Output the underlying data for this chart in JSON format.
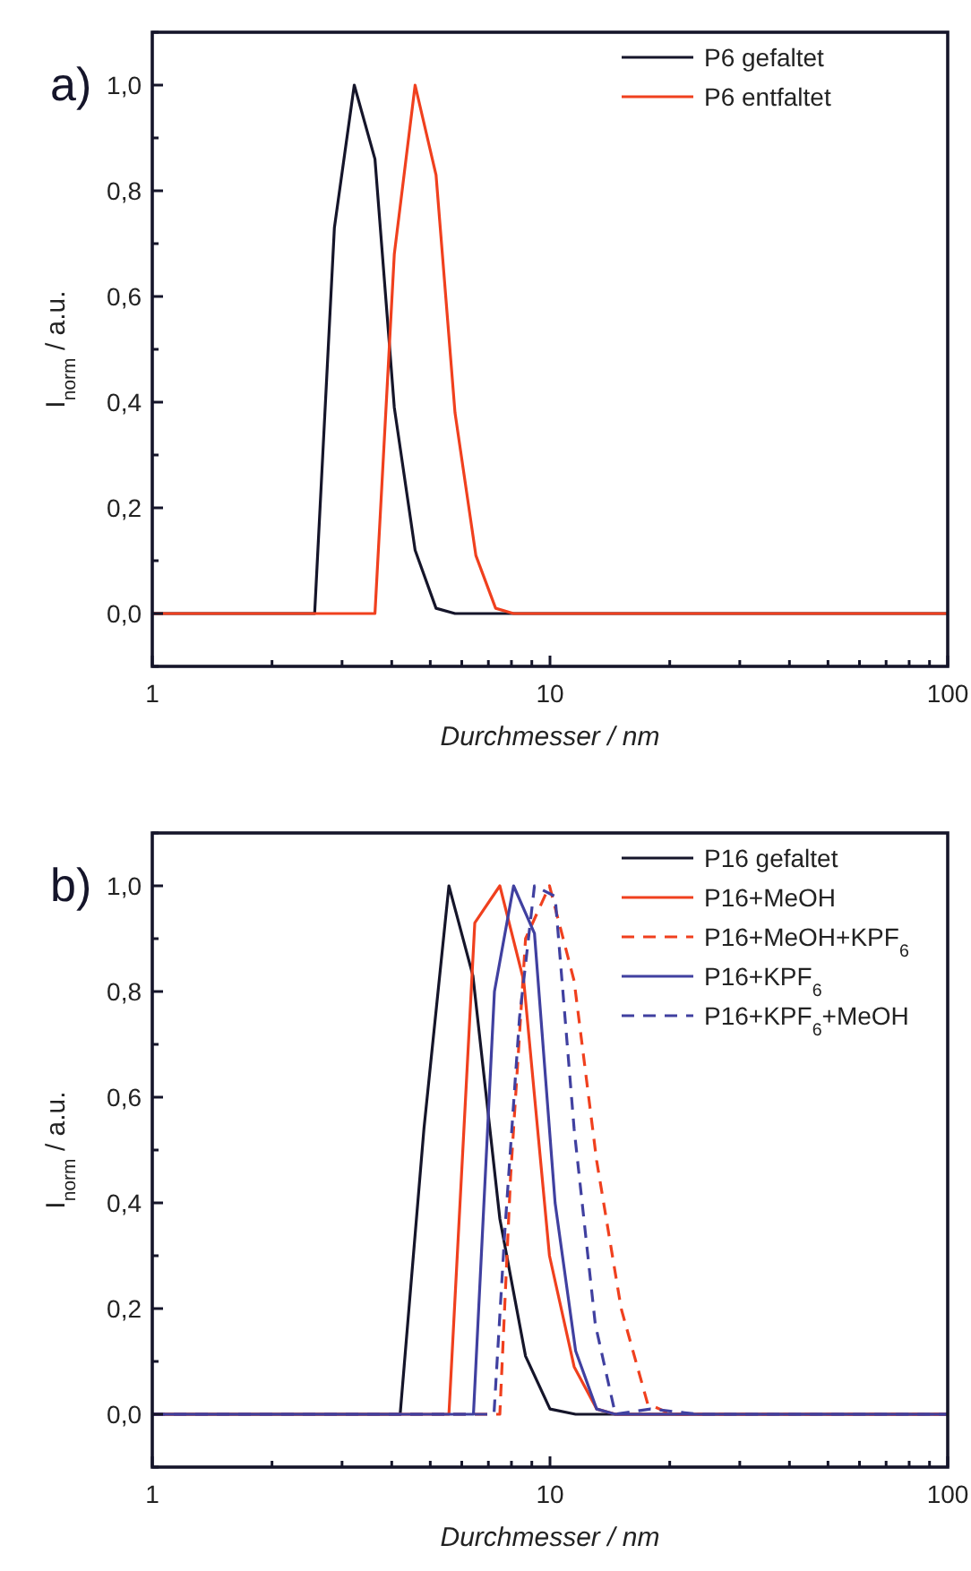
{
  "chart_data": [
    {
      "type": "line",
      "title": "a)",
      "xlabel": "Durchmesser / nm",
      "ylabel": "I$_{norm}$ / a.u.",
      "log": "x",
      "xlim": [
        1,
        100
      ],
      "ylim": [
        -0.1,
        1.1
      ],
      "xticks": [
        1,
        {
          "value": 2,
          "label": null
        },
        {
          "value": 3,
          "label": null
        },
        {
          "value": 4,
          "label": null
        },
        {
          "value": 5,
          "label": null
        },
        {
          "value": 6,
          "label": null
        },
        {
          "value": 7,
          "label": null
        },
        {
          "value": 8,
          "label": null
        },
        {
          "value": 9,
          "label": null
        },
        10,
        {
          "value": 20,
          "label": null
        },
        {
          "value": 30,
          "label": null
        },
        {
          "value": 40,
          "label": null
        },
        {
          "value": 50,
          "label": null
        },
        {
          "value": 60,
          "label": null
        },
        {
          "value": 70,
          "label": null
        },
        {
          "value": 80,
          "label": null
        },
        {
          "value": 90,
          "label": null
        },
        100
      ],
      "yticks": [
        {
          "value": -0.1,
          "label": null
        },
        {
          "value": 0,
          "label": "0,0"
        },
        {
          "value": 0.1,
          "label": null
        },
        {
          "value": 0.2,
          "label": "0,2"
        },
        {
          "value": 0.3,
          "label": null
        },
        {
          "value": 0.4,
          "label": "0,4"
        },
        {
          "value": 0.5,
          "label": null
        },
        {
          "value": 0.6,
          "label": "0,6"
        },
        {
          "value": 0.7,
          "label": null
        },
        {
          "value": 0.8,
          "label": "0,8"
        },
        {
          "value": 0.9,
          "label": null
        },
        {
          "value": 1,
          "label": "1,0"
        },
        {
          "value": 1.1,
          "label": null
        }
      ],
      "grid": false,
      "legend": "top right",
      "series": [
        {
          "name": "P6 gefaltet",
          "color": "#15152a",
          "x": [
            1,
            2.56,
            2.87,
            3.22,
            3.63,
            4.06,
            4.58,
            5.17,
            5.77,
            8.1,
            100
          ],
          "values": [
            0,
            0,
            0.73,
            1.0,
            0.86,
            0.39,
            0.12,
            0.01,
            0,
            0,
            0
          ]
        },
        {
          "name": "P6 entfaltet",
          "color": "#f0401e",
          "x": [
            1,
            3.63,
            4.06,
            4.58,
            5.17,
            5.77,
            6.51,
            7.3,
            8.1,
            100
          ],
          "values": [
            0,
            0,
            0.68,
            1.0,
            0.83,
            0.38,
            0.11,
            0.01,
            0,
            0
          ]
        }
      ]
    },
    {
      "type": "line",
      "title": "b)",
      "xlabel": "Durchmesser / nm",
      "ylabel": "I$_{norm}$ / a.u.",
      "log": "x",
      "xlim": [
        1,
        100
      ],
      "ylim": [
        -0.1,
        1.1
      ],
      "xticks": [
        1,
        {
          "value": 2,
          "label": null
        },
        {
          "value": 3,
          "label": null
        },
        {
          "value": 4,
          "label": null
        },
        {
          "value": 5,
          "label": null
        },
        {
          "value": 6,
          "label": null
        },
        {
          "value": 7,
          "label": null
        },
        {
          "value": 8,
          "label": null
        },
        {
          "value": 9,
          "label": null
        },
        10,
        {
          "value": 20,
          "label": null
        },
        {
          "value": 30,
          "label": null
        },
        {
          "value": 40,
          "label": null
        },
        {
          "value": 50,
          "label": null
        },
        {
          "value": 60,
          "label": null
        },
        {
          "value": 70,
          "label": null
        },
        {
          "value": 80,
          "label": null
        },
        {
          "value": 90,
          "label": null
        },
        100
      ],
      "yticks": [
        {
          "value": -0.1,
          "label": null
        },
        {
          "value": 0,
          "label": "0,0"
        },
        {
          "value": 0.1,
          "label": null
        },
        {
          "value": 0.2,
          "label": "0,2"
        },
        {
          "value": 0.3,
          "label": null
        },
        {
          "value": 0.4,
          "label": "0,4"
        },
        {
          "value": 0.5,
          "label": null
        },
        {
          "value": 0.6,
          "label": "0,6"
        },
        {
          "value": 0.7,
          "label": null
        },
        {
          "value": 0.8,
          "label": "0,8"
        },
        {
          "value": 0.9,
          "label": null
        },
        {
          "value": 1,
          "label": "1,0"
        },
        {
          "value": 1.1,
          "label": null
        }
      ],
      "grid": false,
      "legend": "top right",
      "series": [
        {
          "name": "P16 gefaltet",
          "color": "#15152a",
          "line_style": "solid",
          "x": [
            1,
            4.2,
            4.82,
            5.57,
            6.4,
            7.48,
            8.68,
            10.0,
            11.6,
            100
          ],
          "values": [
            0,
            0,
            0.54,
            1.0,
            0.83,
            0.37,
            0.11,
            0.01,
            0,
            0
          ]
        },
        {
          "name": "P16+MeOH",
          "color": "#f0401e",
          "line_style": "solid",
          "x": [
            1,
            5.57,
            6.47,
            7.48,
            8.59,
            9.97,
            11.5,
            13.1,
            14.6,
            100
          ],
          "values": [
            0,
            0,
            0.93,
            1.0,
            0.82,
            0.3,
            0.09,
            0.01,
            0,
            0
          ]
        },
        {
          "name": "P16+MeOH+KPF$_{6}$",
          "color": "#f0401e",
          "line_style": "dashed",
          "x": [
            1,
            7.48,
            7.96,
            8.68,
            9.97,
            11.5,
            13.1,
            15.1,
            17.6,
            20.2,
            100
          ],
          "values": [
            0,
            0,
            0.45,
            0.9,
            1.0,
            0.82,
            0.48,
            0.2,
            0.02,
            0,
            0
          ]
        },
        {
          "name": "P16+KPF$_{6}$",
          "color": "#4040a0",
          "line_style": "solid",
          "x": [
            1,
            6.42,
            7.25,
            8.1,
            9.14,
            10.3,
            11.6,
            13.1,
            14.6,
            100
          ],
          "values": [
            0,
            0,
            0.8,
            1.0,
            0.91,
            0.4,
            0.12,
            0.01,
            0,
            0
          ]
        },
        {
          "name": "P16+KPF$_{6}$+MeOH",
          "color": "#4040a0",
          "line_style": "dashed",
          "x": [
            1,
            7.23,
            7.69,
            8.38,
            9.14,
            10.3,
            11.5,
            13.0,
            14.6,
            17.9,
            23.7,
            100
          ],
          "values": [
            0,
            0,
            0.34,
            0.75,
            1.0,
            0.98,
            0.54,
            0.17,
            0,
            0.01,
            0,
            0
          ]
        }
      ]
    }
  ]
}
